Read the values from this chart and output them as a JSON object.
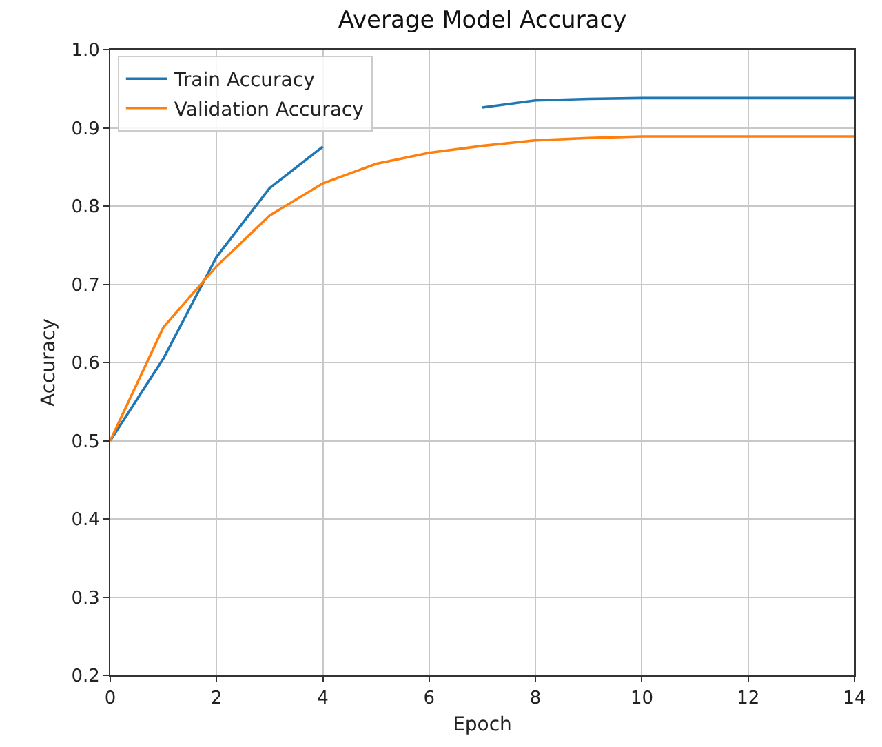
{
  "chart_data": {
    "type": "line",
    "title": "Average Model Accuracy",
    "xlabel": "Epoch",
    "ylabel": "Accuracy",
    "x": [
      0,
      1,
      2,
      3,
      4,
      5,
      6,
      7,
      8,
      9,
      10,
      11,
      12,
      13,
      14
    ],
    "series": [
      {
        "name": "Train Accuracy",
        "color": "#1f77b4",
        "values": [
          0.5,
          0.605,
          0.735,
          0.823,
          0.876,
          null,
          null,
          0.926,
          0.935,
          0.937,
          0.938,
          0.938,
          0.938,
          0.938,
          0.938
        ]
      },
      {
        "name": "Validation Accuracy",
        "color": "#ff7f0e",
        "values": [
          0.5,
          0.645,
          0.723,
          0.788,
          0.829,
          0.854,
          0.868,
          0.877,
          0.884,
          0.887,
          0.889,
          0.889,
          0.889,
          0.889,
          0.889
        ]
      }
    ],
    "xlim": [
      0,
      14
    ],
    "xticks": [
      0,
      2,
      4,
      6,
      8,
      10,
      12,
      14
    ],
    "ylim": [
      0.2,
      1.0
    ],
    "yticks": [
      {
        "value": 0.2,
        "label": "0.2"
      },
      {
        "value": 0.3,
        "label": "0.3"
      },
      {
        "value": 0.4,
        "label": "0.4"
      },
      {
        "value": 0.5,
        "label": "0.5"
      },
      {
        "value": 0.6,
        "label": "0.6"
      },
      {
        "value": 0.7,
        "label": "0.7"
      },
      {
        "value": 0.8,
        "label": "0.8"
      },
      {
        "value": 0.9,
        "label": "0.9"
      },
      {
        "value": 1.0,
        "label": "1.0"
      }
    ],
    "grid": true,
    "legend": "top left",
    "marker": "none",
    "line_style": "solid"
  }
}
